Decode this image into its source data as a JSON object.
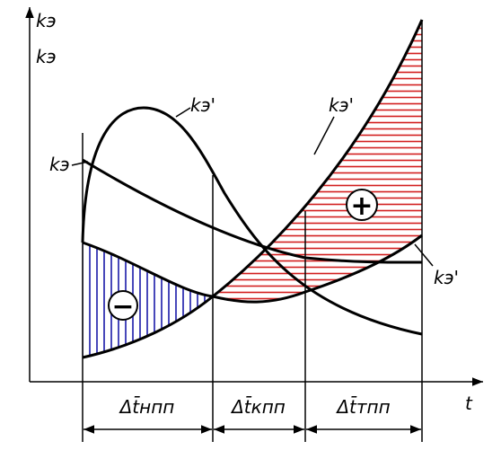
{
  "axes": {
    "y_label_1": "kэ",
    "y_label_2": "kэ",
    "x_label": "t"
  },
  "curve_labels": [
    "kэ'",
    "kэ'",
    "kэ",
    "kэ'"
  ],
  "signs": {
    "minus": "−",
    "plus": "+"
  },
  "intervals": [
    "Δt̄нпп",
    "Δt̄кпп",
    "Δt̄тпп"
  ]
}
